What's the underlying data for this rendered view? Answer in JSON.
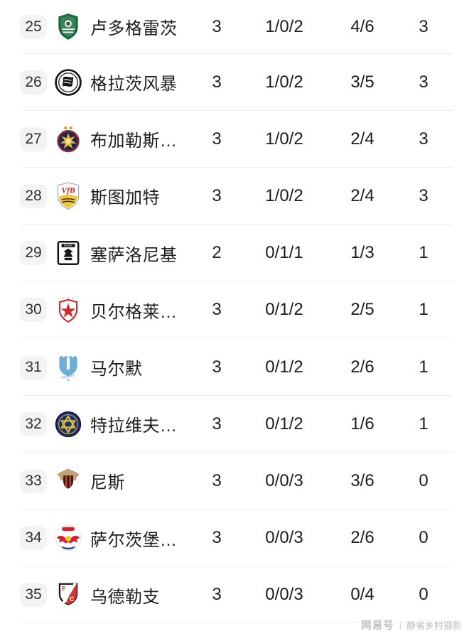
{
  "colors": {
    "background": "#ffffff",
    "row_divider": "#ededed",
    "rank_badge_bg": "#f3f3f3",
    "primary_text": "#1c1c1c",
    "rank_text": "#2f2f2f",
    "watermark_text": "#bfbfbf",
    "accent_green": "#186a3b",
    "accent_red": "#d12b2b",
    "accent_blue": "#232f6b"
  },
  "table": {
    "rows": [
      {
        "rank": "25",
        "badge_icon": "ludogorets-badge-icon",
        "team": "卢多格雷茨",
        "played": "3",
        "win_draw_loss": "1/0/2",
        "goals": "4/6",
        "points": "3"
      },
      {
        "rank": "26",
        "badge_icon": "sturm-graz-badge-icon",
        "team": "格拉茨风暴",
        "played": "3",
        "win_draw_loss": "1/0/2",
        "goals": "3/5",
        "points": "3"
      },
      {
        "rank": "27",
        "badge_icon": "fcsb-badge-icon",
        "team": "布加勒斯…",
        "played": "3",
        "win_draw_loss": "1/0/2",
        "goals": "2/4",
        "points": "3"
      },
      {
        "rank": "28",
        "badge_icon": "stuttgart-badge-icon",
        "team": "斯图加特",
        "played": "3",
        "win_draw_loss": "1/0/2",
        "goals": "2/4",
        "points": "3"
      },
      {
        "rank": "29",
        "badge_icon": "paok-badge-icon",
        "team": "塞萨洛尼基",
        "played": "2",
        "win_draw_loss": "0/1/1",
        "goals": "1/3",
        "points": "1"
      },
      {
        "rank": "30",
        "badge_icon": "red-star-badge-icon",
        "team": "贝尔格莱…",
        "played": "3",
        "win_draw_loss": "0/1/2",
        "goals": "2/5",
        "points": "1"
      },
      {
        "rank": "31",
        "badge_icon": "malmo-badge-icon",
        "team": "马尔默",
        "played": "3",
        "win_draw_loss": "0/1/2",
        "goals": "2/6",
        "points": "1"
      },
      {
        "rank": "32",
        "badge_icon": "maccabi-tel-aviv-badge-icon",
        "team": "特拉维夫…",
        "played": "3",
        "win_draw_loss": "0/1/2",
        "goals": "1/6",
        "points": "1"
      },
      {
        "rank": "33",
        "badge_icon": "nice-badge-icon",
        "team": "尼斯",
        "played": "3",
        "win_draw_loss": "0/0/3",
        "goals": "3/6",
        "points": "0"
      },
      {
        "rank": "34",
        "badge_icon": "salzburg-badge-icon",
        "team": "萨尔茨堡…",
        "played": "3",
        "win_draw_loss": "0/0/3",
        "goals": "2/6",
        "points": "0"
      },
      {
        "rank": "35",
        "badge_icon": "utrecht-badge-icon",
        "team": "乌德勒支",
        "played": "3",
        "win_draw_loss": "0/0/3",
        "goals": "0/4",
        "points": "0"
      }
    ]
  },
  "watermark": {
    "brand": "网易号",
    "separator": "|",
    "author": "静省乡村摄影"
  }
}
